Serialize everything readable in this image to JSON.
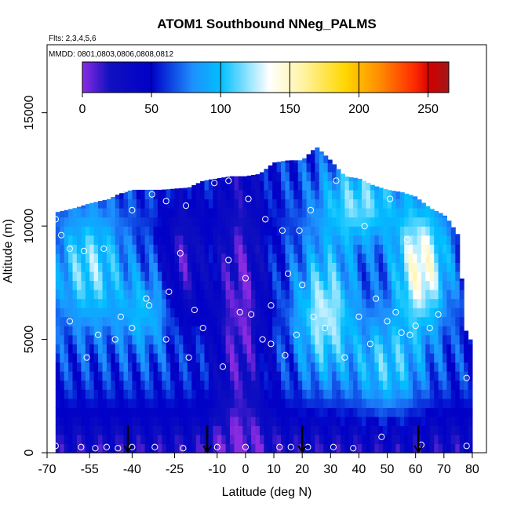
{
  "chart_data": {
    "type": "heatmap",
    "title": "ATOM1 Southbound NNeg_PALMS",
    "notes": {
      "flights": "Flts: 2,3,4,5,6",
      "dates": "MMDD: 0801,0803,0806,0808,0812"
    },
    "xlabel": "Latitude (deg N)",
    "ylabel": "Altitude (m)",
    "xlim": [
      -70,
      85
    ],
    "ylim": [
      0,
      18000
    ],
    "x_ticks": [
      -70,
      -55,
      -40,
      -25,
      -10,
      0,
      10,
      20,
      30,
      40,
      50,
      60,
      70,
      80
    ],
    "x_tick_labels": [
      "-70",
      "-55",
      "-40",
      "-25",
      "-10",
      "0",
      "10",
      "20",
      "30",
      "40",
      "50",
      "60",
      "70",
      "80"
    ],
    "y_ticks": [
      0,
      5000,
      10000,
      15000
    ],
    "y_tick_labels": [
      "0",
      "5000",
      "10000",
      "15000"
    ],
    "colorbar": {
      "range": [
        0,
        265
      ],
      "ticks": [
        0,
        50,
        100,
        150,
        200,
        250
      ],
      "tick_labels": [
        "0",
        "50",
        "100",
        "150",
        "200",
        "250"
      ],
      "colors": [
        "#8a2be2",
        "#1010c0",
        "#0000c8",
        "#1e90ff",
        "#00bfff",
        "#ffffff",
        "#fff3a0",
        "#ffd700",
        "#ff8c00",
        "#ff2a00",
        "#d00000",
        "#a01818"
      ],
      "stops": [
        0,
        20,
        50,
        80,
        100,
        135,
        160,
        190,
        215,
        240,
        252,
        265
      ]
    },
    "coverage": {
      "lat": [
        -67,
        -60,
        -55,
        -48,
        -45,
        -40,
        -30,
        -20,
        -15,
        -10,
        -5,
        0,
        5,
        10,
        15,
        20,
        25,
        30,
        35,
        40,
        45,
        50,
        55,
        60,
        65,
        70,
        72,
        75,
        78
      ],
      "top_alt": [
        10600,
        10800,
        11000,
        11200,
        11400,
        11600,
        11600,
        11700,
        12000,
        12100,
        12200,
        12200,
        12300,
        12800,
        12900,
        12900,
        13500,
        12900,
        12200,
        12100,
        11800,
        11600,
        11500,
        11300,
        10800,
        10500,
        10200,
        9600,
        5000
      ]
    },
    "profile_latitudes": [
      -41.5,
      -13.5,
      20,
      61
    ],
    "observations": [
      [
        -67,
        300
      ],
      [
        -58,
        250
      ],
      [
        -53,
        200
      ],
      [
        -49,
        250
      ],
      [
        -45,
        200
      ],
      [
        -40,
        250
      ],
      [
        -32,
        250
      ],
      [
        -22,
        200
      ],
      [
        -10,
        250
      ],
      [
        0,
        250
      ],
      [
        12,
        250
      ],
      [
        16,
        250
      ],
      [
        22,
        250
      ],
      [
        31,
        250
      ],
      [
        38,
        200
      ],
      [
        48,
        700
      ],
      [
        62,
        350
      ],
      [
        78,
        300
      ],
      [
        -67,
        10300
      ],
      [
        -65,
        9600
      ],
      [
        -62,
        9000
      ],
      [
        -57,
        8900
      ],
      [
        -50,
        9000
      ],
      [
        -62,
        5800
      ],
      [
        -56,
        4200
      ],
      [
        -52,
        5200
      ],
      [
        -46,
        5000
      ],
      [
        -44,
        6000
      ],
      [
        -40,
        5500
      ],
      [
        -34,
        6500
      ],
      [
        -28,
        5000
      ],
      [
        -20,
        4200
      ],
      [
        -15,
        5500
      ],
      [
        -8,
        3800
      ],
      [
        -2,
        6200
      ],
      [
        2,
        6100
      ],
      [
        6,
        5000
      ],
      [
        9,
        4800
      ],
      [
        14,
        4300
      ],
      [
        18,
        5200
      ],
      [
        24,
        6000
      ],
      [
        28,
        5500
      ],
      [
        35,
        4200
      ],
      [
        40,
        6000
      ],
      [
        44,
        4800
      ],
      [
        50,
        5800
      ],
      [
        55,
        5300
      ],
      [
        60,
        5600
      ],
      [
        65,
        5500
      ],
      [
        68,
        6100
      ],
      [
        -43,
        11600
      ],
      [
        -40,
        10700
      ],
      [
        -33,
        11400
      ],
      [
        -28,
        11100
      ],
      [
        -21,
        10900
      ],
      [
        -11,
        11900
      ],
      [
        -6,
        12000
      ],
      [
        1,
        11200
      ],
      [
        7,
        10300
      ],
      [
        13,
        9800
      ],
      [
        19,
        9800
      ],
      [
        23,
        10700
      ],
      [
        32,
        12000
      ],
      [
        42,
        10000
      ],
      [
        51,
        11200
      ],
      [
        57,
        9400
      ],
      [
        63,
        8700
      ],
      [
        -35,
        6800
      ],
      [
        -27,
        7100
      ],
      [
        -23,
        8800
      ],
      [
        -18,
        6300
      ],
      [
        -6,
        8500
      ],
      [
        0,
        7700
      ],
      [
        9,
        6500
      ],
      [
        15,
        7900
      ],
      [
        20,
        7400
      ],
      [
        46,
        6800
      ],
      [
        53,
        6200
      ],
      [
        58,
        5200
      ],
      [
        78,
        3300
      ]
    ]
  }
}
